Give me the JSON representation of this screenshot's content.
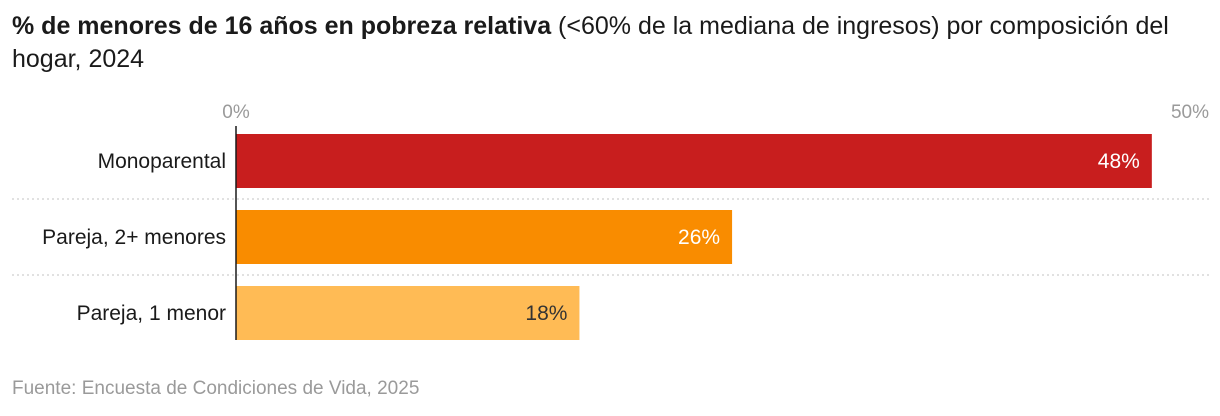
{
  "title": {
    "bold": "% de menores de 16 años en pobreza relativa",
    "rest": " (<60% de la mediana de ingresos) por composición del hogar, 2024"
  },
  "source": "Fuente: Encuesta de Condiciones de Vida, 2025",
  "chart_data": {
    "type": "bar",
    "orientation": "horizontal",
    "categories": [
      "Monoparental",
      "Pareja, 2+ menores",
      "Pareja, 1 menor"
    ],
    "values": [
      48,
      26,
      18
    ],
    "value_labels": [
      "48%",
      "26%",
      "18%"
    ],
    "colors": [
      "#c81e1e",
      "#f98c00",
      "#ffbb55"
    ],
    "label_colors": [
      "#ffffff",
      "#ffffff",
      "#333333"
    ],
    "xlim": [
      0,
      50
    ],
    "xticks": [
      0,
      50
    ],
    "xtick_labels": [
      "0%",
      "50%"
    ],
    "grid": false
  }
}
